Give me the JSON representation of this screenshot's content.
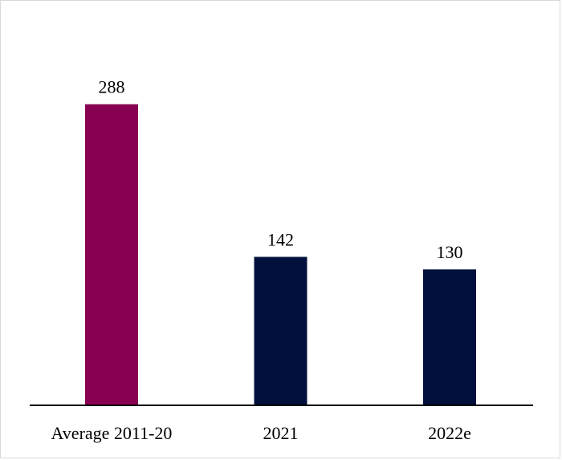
{
  "chart_data": {
    "type": "bar",
    "title": "",
    "xlabel": "",
    "ylabel": "",
    "categories": [
      "Average 2011-20",
      "2021",
      "2022e"
    ],
    "values": [
      288,
      142,
      130
    ],
    "data_labels": [
      "288",
      "142",
      "130"
    ],
    "colors": [
      "#870052",
      "#000f3c",
      "#000f3c"
    ],
    "axis_color": "#000000",
    "ylim": [
      0,
      330
    ],
    "grid": false,
    "legend": "none"
  }
}
